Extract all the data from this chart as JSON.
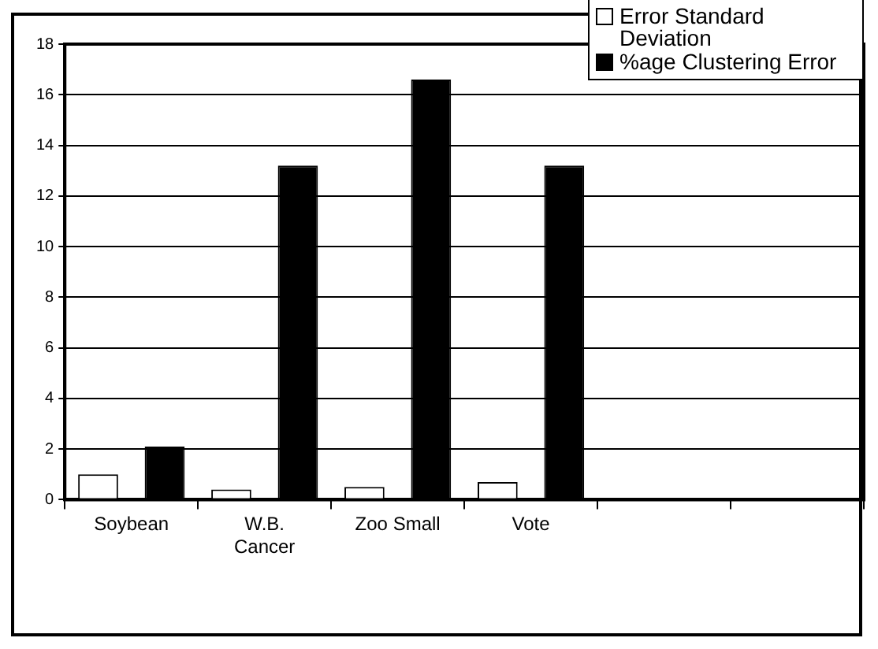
{
  "chart_data": {
    "type": "bar",
    "categories": [
      "Soybean",
      "W.B. Cancer",
      "Zoo Small",
      "Vote",
      null,
      null
    ],
    "series": [
      {
        "name": "Error Standard Deviation",
        "color": "#ffffff",
        "values": [
          1.0,
          0.4,
          0.5,
          0.7,
          null,
          null
        ]
      },
      {
        "name": "%age Clustering Error",
        "color": "#000000",
        "values": [
          2.1,
          13.2,
          16.6,
          13.2,
          null,
          null
        ]
      }
    ],
    "ylim": [
      0,
      18
    ],
    "yticks": [
      0,
      2,
      4,
      6,
      8,
      10,
      12,
      14,
      16,
      18
    ],
    "grid": "y",
    "legend": "top right"
  }
}
